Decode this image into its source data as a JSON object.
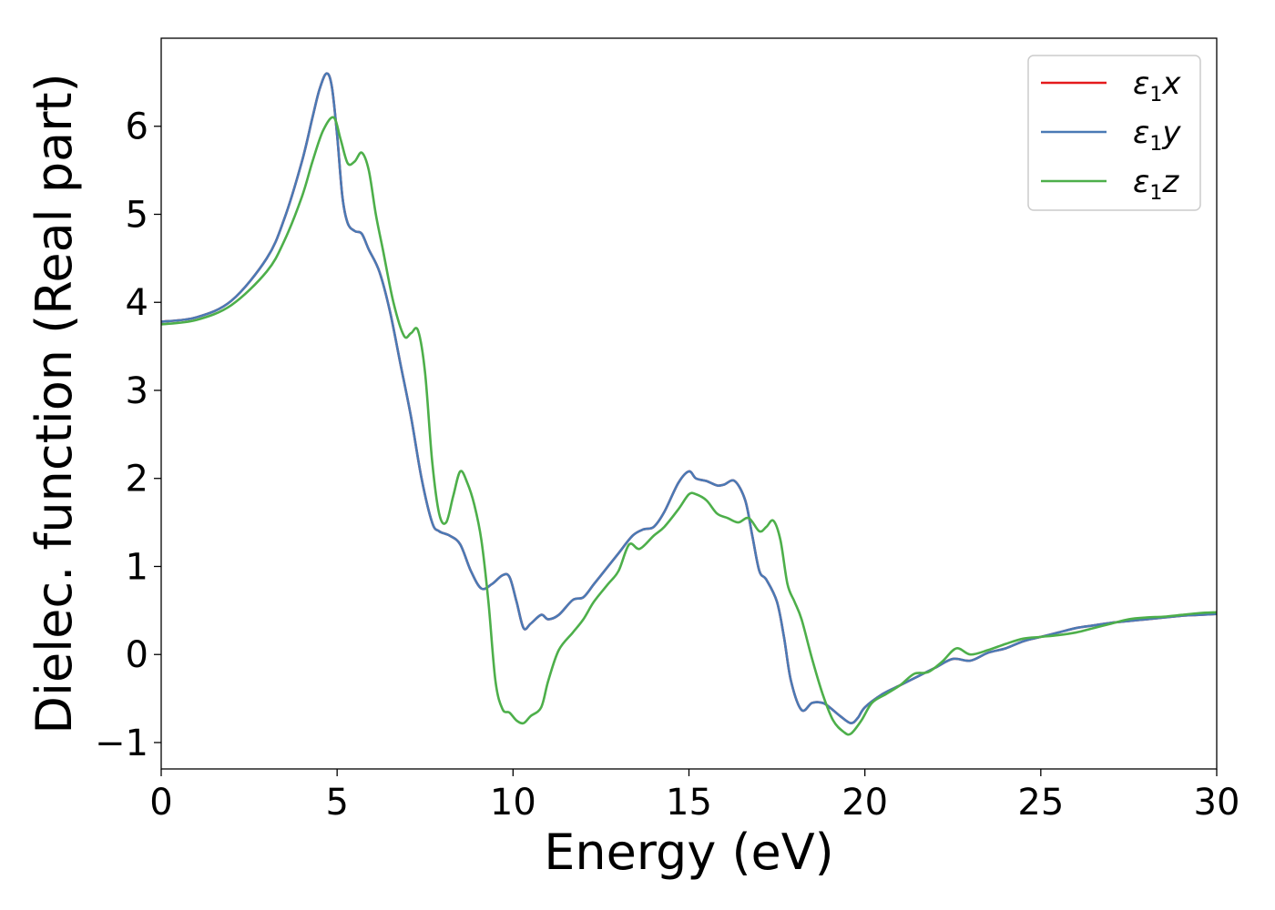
{
  "chart_data": {
    "type": "line",
    "xlabel": "Energy (eV)",
    "ylabel": "Dielec. function (Real part)",
    "xlim": [
      0,
      30
    ],
    "ylim": [
      -1.3,
      7.0
    ],
    "xticks": [
      0,
      5,
      10,
      15,
      20,
      25,
      30
    ],
    "xtick_labels": [
      "0",
      "5",
      "10",
      "15",
      "20",
      "25",
      "30"
    ],
    "yticks": [
      -1,
      0,
      1,
      2,
      3,
      4,
      5,
      6
    ],
    "ytick_labels": [
      "−1",
      "0",
      "1",
      "2",
      "3",
      "4",
      "5",
      "6"
    ],
    "grid": false,
    "legend_position": "top-right",
    "series": [
      {
        "name": "ε1x",
        "legend_base": "ε",
        "legend_sub": "1",
        "legend_var": "x",
        "color": "#e41a1c",
        "x": [
          0,
          1,
          2,
          3,
          3.5,
          4,
          4.3,
          4.5,
          4.7,
          4.85,
          5,
          5.15,
          5.3,
          5.5,
          5.7,
          5.9,
          6.2,
          6.5,
          6.8,
          7.1,
          7.4,
          7.7,
          7.9,
          8.2,
          8.5,
          8.8,
          9.1,
          9.4,
          9.7,
          9.9,
          10.1,
          10.3,
          10.5,
          10.8,
          11,
          11.3,
          11.7,
          12,
          12.3,
          12.7,
          13,
          13.4,
          13.7,
          14,
          14.3,
          14.7,
          15,
          15.2,
          15.5,
          15.8,
          16,
          16.3,
          16.6,
          16.8,
          17,
          17.2,
          17.5,
          17.7,
          17.9,
          18.2,
          18.5,
          18.8,
          19,
          19.3,
          19.6,
          19.8,
          20,
          20.5,
          21,
          21.5,
          22,
          22.5,
          23,
          23.5,
          24,
          24.5,
          25,
          25.5,
          26,
          26.5,
          27,
          27.5,
          28,
          28.5,
          29,
          29.5,
          30
        ],
        "y": [
          3.78,
          3.83,
          4.02,
          4.5,
          4.95,
          5.6,
          6.1,
          6.42,
          6.6,
          6.45,
          5.9,
          5.2,
          4.9,
          4.81,
          4.78,
          4.6,
          4.35,
          3.9,
          3.3,
          2.7,
          2.0,
          1.5,
          1.4,
          1.35,
          1.25,
          0.95,
          0.75,
          0.8,
          0.9,
          0.88,
          0.6,
          0.3,
          0.35,
          0.45,
          0.4,
          0.45,
          0.62,
          0.65,
          0.8,
          1.0,
          1.15,
          1.35,
          1.42,
          1.45,
          1.62,
          1.95,
          2.08,
          2.0,
          1.97,
          1.92,
          1.93,
          1.97,
          1.75,
          1.35,
          0.95,
          0.85,
          0.6,
          0.2,
          -0.3,
          -0.63,
          -0.55,
          -0.55,
          -0.6,
          -0.7,
          -0.78,
          -0.72,
          -0.6,
          -0.45,
          -0.35,
          -0.25,
          -0.15,
          -0.05,
          -0.07,
          0.02,
          0.07,
          0.15,
          0.2,
          0.25,
          0.3,
          0.33,
          0.36,
          0.38,
          0.4,
          0.42,
          0.44,
          0.45,
          0.46
        ]
      },
      {
        "name": "ε1y",
        "legend_base": "ε",
        "legend_sub": "1",
        "legend_var": "y",
        "color": "#4a7ab5",
        "x": [
          0,
          1,
          2,
          3,
          3.5,
          4,
          4.3,
          4.5,
          4.7,
          4.85,
          5,
          5.15,
          5.3,
          5.5,
          5.7,
          5.9,
          6.2,
          6.5,
          6.8,
          7.1,
          7.4,
          7.7,
          7.9,
          8.2,
          8.5,
          8.8,
          9.1,
          9.4,
          9.7,
          9.9,
          10.1,
          10.3,
          10.5,
          10.8,
          11,
          11.3,
          11.7,
          12,
          12.3,
          12.7,
          13,
          13.4,
          13.7,
          14,
          14.3,
          14.7,
          15,
          15.2,
          15.5,
          15.8,
          16,
          16.3,
          16.6,
          16.8,
          17,
          17.2,
          17.5,
          17.7,
          17.9,
          18.2,
          18.5,
          18.8,
          19,
          19.3,
          19.6,
          19.8,
          20,
          20.5,
          21,
          21.5,
          22,
          22.5,
          23,
          23.5,
          24,
          24.5,
          25,
          25.5,
          26,
          26.5,
          27,
          27.5,
          28,
          28.5,
          29,
          29.5,
          30
        ],
        "y": [
          3.78,
          3.83,
          4.02,
          4.5,
          4.95,
          5.6,
          6.1,
          6.42,
          6.6,
          6.45,
          5.9,
          5.2,
          4.9,
          4.81,
          4.78,
          4.6,
          4.35,
          3.9,
          3.3,
          2.7,
          2.0,
          1.5,
          1.4,
          1.35,
          1.25,
          0.95,
          0.75,
          0.8,
          0.9,
          0.88,
          0.6,
          0.3,
          0.35,
          0.45,
          0.4,
          0.45,
          0.62,
          0.65,
          0.8,
          1.0,
          1.15,
          1.35,
          1.42,
          1.45,
          1.62,
          1.95,
          2.08,
          2.0,
          1.97,
          1.92,
          1.93,
          1.97,
          1.75,
          1.35,
          0.95,
          0.85,
          0.6,
          0.2,
          -0.3,
          -0.63,
          -0.55,
          -0.55,
          -0.6,
          -0.7,
          -0.78,
          -0.72,
          -0.6,
          -0.45,
          -0.35,
          -0.25,
          -0.15,
          -0.05,
          -0.07,
          0.02,
          0.07,
          0.15,
          0.2,
          0.25,
          0.3,
          0.33,
          0.36,
          0.38,
          0.4,
          0.42,
          0.44,
          0.45,
          0.46
        ]
      },
      {
        "name": "ε1z",
        "legend_base": "ε",
        "legend_sub": "1",
        "legend_var": "z",
        "color": "#4daf4a",
        "x": [
          0,
          1,
          2,
          3,
          3.5,
          4,
          4.3,
          4.6,
          4.9,
          5.1,
          5.3,
          5.5,
          5.7,
          5.9,
          6.1,
          6.3,
          6.6,
          6.9,
          7.1,
          7.3,
          7.5,
          7.7,
          7.9,
          8.1,
          8.3,
          8.5,
          8.7,
          8.9,
          9.1,
          9.3,
          9.5,
          9.7,
          9.9,
          10.1,
          10.3,
          10.5,
          10.8,
          11,
          11.3,
          11.7,
          12,
          12.3,
          12.7,
          13,
          13.3,
          13.6,
          14,
          14.3,
          14.7,
          15,
          15.2,
          15.5,
          15.8,
          16.1,
          16.4,
          16.7,
          17,
          17.2,
          17.4,
          17.6,
          17.8,
          18,
          18.2,
          18.5,
          18.8,
          19.1,
          19.4,
          19.6,
          19.9,
          20.2,
          20.6,
          21,
          21.4,
          21.8,
          22.2,
          22.6,
          23,
          23.5,
          24,
          24.5,
          25,
          25.5,
          26,
          26.5,
          27,
          27.5,
          28,
          28.5,
          29,
          29.5,
          30
        ],
        "y": [
          3.75,
          3.8,
          3.97,
          4.35,
          4.7,
          5.2,
          5.6,
          5.95,
          6.1,
          5.85,
          5.58,
          5.6,
          5.7,
          5.5,
          5.0,
          4.6,
          4.0,
          3.62,
          3.65,
          3.68,
          3.2,
          2.2,
          1.6,
          1.5,
          1.8,
          2.08,
          1.95,
          1.7,
          1.3,
          0.6,
          -0.3,
          -0.62,
          -0.66,
          -0.75,
          -0.78,
          -0.7,
          -0.6,
          -0.3,
          0.05,
          0.25,
          0.4,
          0.6,
          0.8,
          0.95,
          1.25,
          1.2,
          1.35,
          1.45,
          1.65,
          1.82,
          1.82,
          1.75,
          1.6,
          1.55,
          1.5,
          1.55,
          1.4,
          1.45,
          1.52,
          1.3,
          0.8,
          0.6,
          0.4,
          -0.05,
          -0.45,
          -0.75,
          -0.88,
          -0.9,
          -0.75,
          -0.55,
          -0.45,
          -0.35,
          -0.22,
          -0.2,
          -0.08,
          0.07,
          0.0,
          0.05,
          0.12,
          0.18,
          0.2,
          0.22,
          0.25,
          0.3,
          0.35,
          0.4,
          0.42,
          0.43,
          0.45,
          0.47,
          0.48
        ]
      }
    ]
  }
}
